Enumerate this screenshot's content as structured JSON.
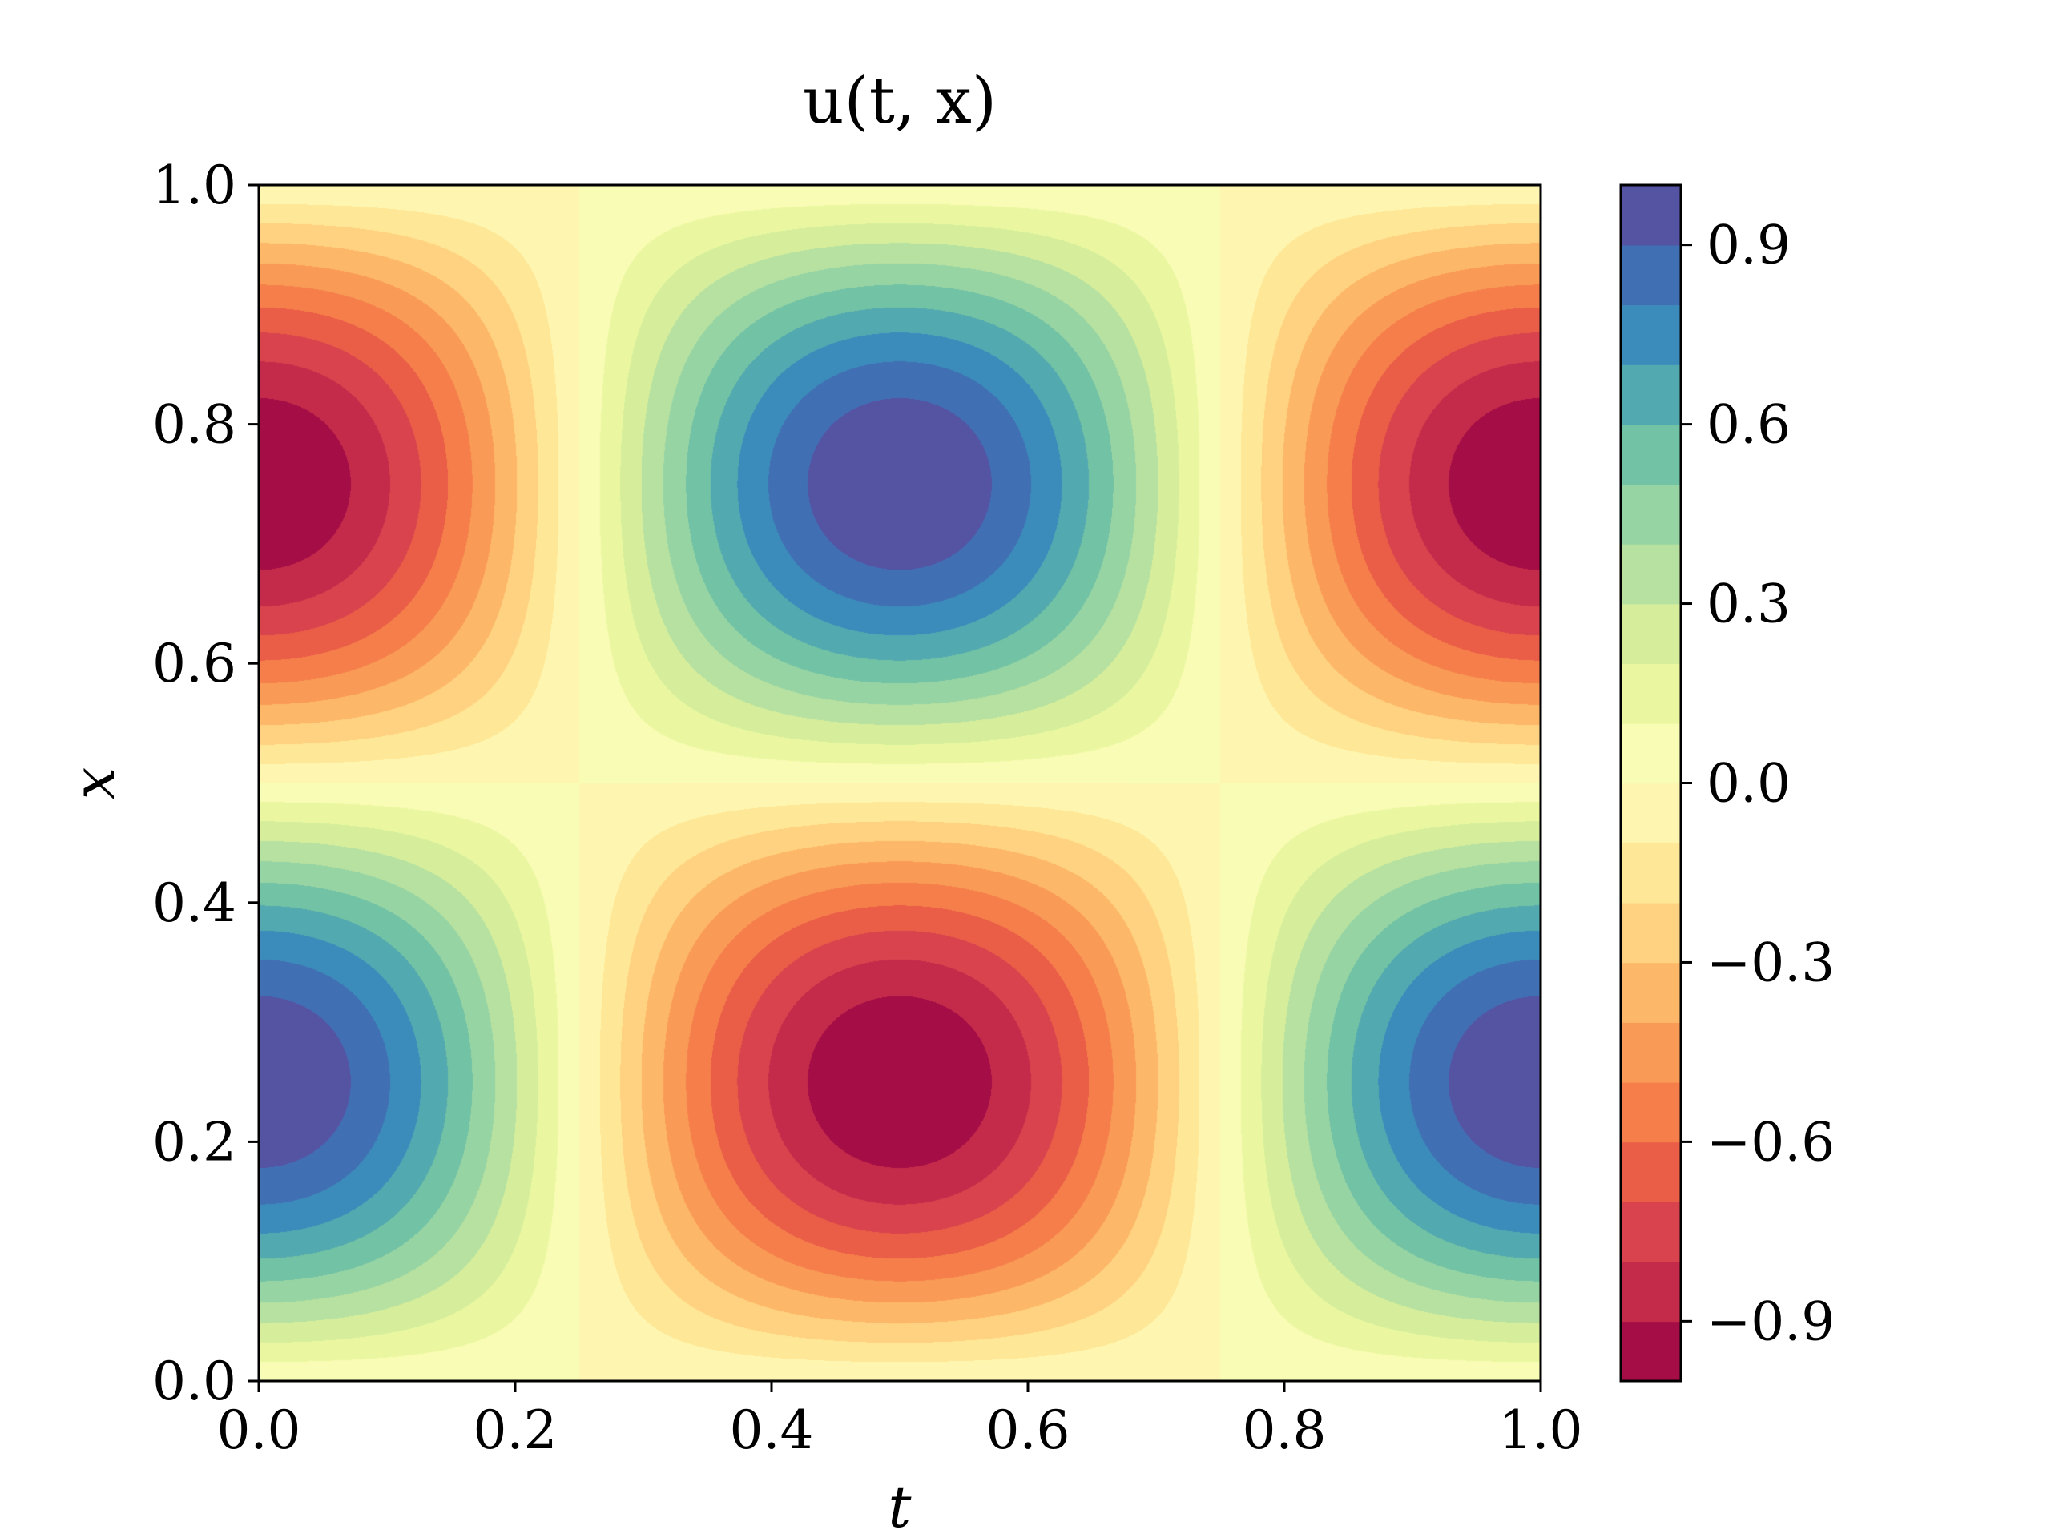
{
  "chart_data": {
    "type": "heatmap",
    "plot_style": "filled-contour",
    "function": "sin(2*pi*x)*cos(2*pi*t)",
    "title": "u(t, x)",
    "xlabel": "t",
    "ylabel": "x",
    "xlim": [
      0.0,
      1.0
    ],
    "ylim": [
      0.0,
      1.0
    ],
    "xticks": [
      "0.0",
      "0.2",
      "0.4",
      "0.6",
      "0.8",
      "1.0"
    ],
    "yticks": [
      "0.0",
      "0.2",
      "0.4",
      "0.6",
      "0.8",
      "1.0"
    ],
    "extrema": [
      {
        "t": 0.0,
        "x": 0.75,
        "u": -1.0
      },
      {
        "t": 0.5,
        "x": 0.75,
        "u": 1.0
      },
      {
        "t": 1.0,
        "x": 0.75,
        "u": -1.0
      },
      {
        "t": 0.0,
        "x": 0.25,
        "u": 1.0
      },
      {
        "t": 0.5,
        "x": 0.25,
        "u": -1.0
      },
      {
        "t": 1.0,
        "x": 0.25,
        "u": 1.0
      }
    ],
    "zero_lines": {
      "t": [
        0.25,
        0.75
      ],
      "x": [
        0.5
      ]
    },
    "colorbar": {
      "colormap": "Spectral",
      "range": [
        -1.0,
        1.0
      ],
      "levels": 20,
      "ticks": [
        {
          "value": 0.9,
          "label": "0.9"
        },
        {
          "value": 0.6,
          "label": "0.6"
        },
        {
          "value": 0.3,
          "label": "0.3"
        },
        {
          "value": 0.0,
          "label": "0.0"
        },
        {
          "value": -0.3,
          "label": "−0.3"
        },
        {
          "value": -0.6,
          "label": "−0.6"
        },
        {
          "value": -0.9,
          "label": "−0.9"
        }
      ],
      "colors": [
        "#a50d46",
        "#c42b4a",
        "#d9434e",
        "#ea5d47",
        "#f57e4b",
        "#f99b56",
        "#fdb769",
        "#fed280",
        "#fee796",
        "#fef6b0",
        "#f9fcb4",
        "#ebf7a0",
        "#d6ee9b",
        "#b7e1a1",
        "#96d4a4",
        "#72c2a5",
        "#53a9b0",
        "#3b8cbb",
        "#416fb4",
        "#5454a3"
      ]
    }
  }
}
